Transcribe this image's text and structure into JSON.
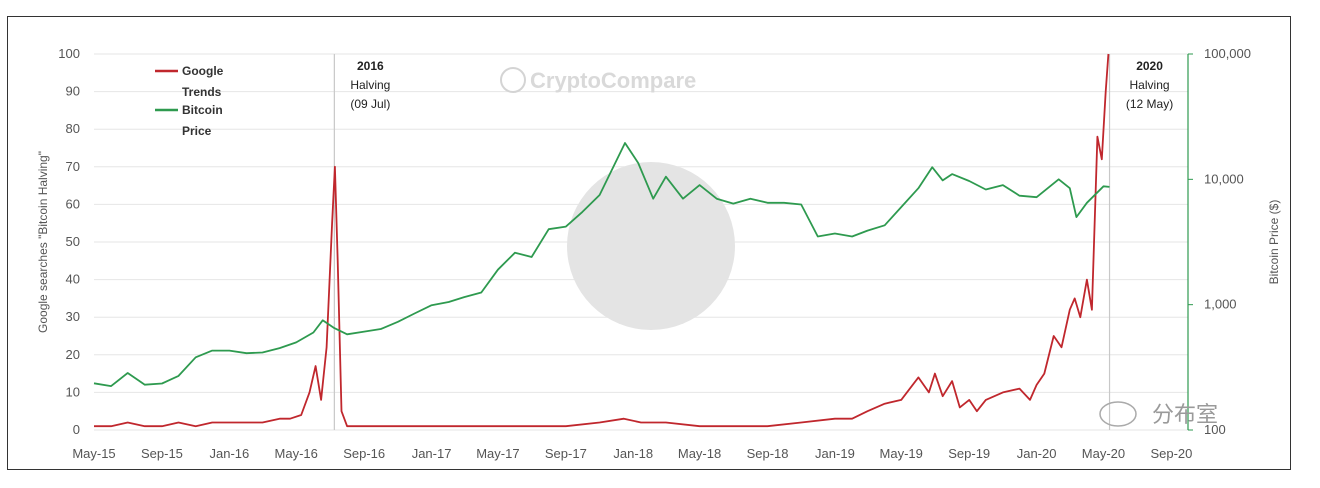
{
  "chart_data": {
    "type": "line",
    "watermark": "CryptoCompare",
    "corner_text": "分布室",
    "y_left_label": "Google searches \"Bitcoin Halving\"",
    "y_right_label": "Bitcoin Price ($)",
    "y_left_range": [
      0,
      100
    ],
    "y_left_ticks": [
      "0",
      "10",
      "20",
      "30",
      "40",
      "50",
      "60",
      "70",
      "80",
      "90",
      "100"
    ],
    "y_right_scale": "log",
    "y_right_range": [
      100,
      100000
    ],
    "y_right_ticks": [
      {
        "value": 100000,
        "label": "100,000"
      },
      {
        "value": 10000,
        "label": "10,000"
      },
      {
        "value": 1000,
        "label": "1,000"
      },
      {
        "value": 100,
        "label": "100"
      }
    ],
    "x_range": [
      "2015-05-01",
      "2020-10-01"
    ],
    "x_ticks": [
      {
        "date": "2015-05-01",
        "label": "May-15"
      },
      {
        "date": "2015-09-01",
        "label": "Sep-15"
      },
      {
        "date": "2016-01-01",
        "label": "Jan-16"
      },
      {
        "date": "2016-05-01",
        "label": "May-16"
      },
      {
        "date": "2016-09-01",
        "label": "Sep-16"
      },
      {
        "date": "2017-01-01",
        "label": "Jan-17"
      },
      {
        "date": "2017-05-01",
        "label": "May-17"
      },
      {
        "date": "2017-09-01",
        "label": "Sep-17"
      },
      {
        "date": "2018-01-01",
        "label": "Jan-18"
      },
      {
        "date": "2018-05-01",
        "label": "May-18"
      },
      {
        "date": "2018-09-01",
        "label": "Sep-18"
      },
      {
        "date": "2019-01-01",
        "label": "Jan-19"
      },
      {
        "date": "2019-05-01",
        "label": "May-19"
      },
      {
        "date": "2019-09-01",
        "label": "Sep-19"
      },
      {
        "date": "2020-01-01",
        "label": "Jan-20"
      },
      {
        "date": "2020-05-01",
        "label": "May-20"
      },
      {
        "date": "2020-09-01",
        "label": "Sep-20"
      }
    ],
    "grid": true,
    "legend_position": "top-left",
    "annotations": [
      {
        "date": "2016-07-09",
        "lines": [
          "2016",
          "Halving",
          "(09 Jul)"
        ]
      },
      {
        "date": "2020-05-12",
        "lines": [
          "2020",
          "Halving",
          "(12 May)"
        ]
      }
    ],
    "series": [
      {
        "name": "Google Trends",
        "axis": "left",
        "color": "#c0272d",
        "points": [
          [
            "2015-05-01",
            1
          ],
          [
            "2015-06-01",
            1
          ],
          [
            "2015-07-01",
            2
          ],
          [
            "2015-08-01",
            1
          ],
          [
            "2015-09-01",
            1
          ],
          [
            "2015-10-01",
            2
          ],
          [
            "2015-11-01",
            1
          ],
          [
            "2015-12-01",
            2
          ],
          [
            "2016-01-01",
            2
          ],
          [
            "2016-02-01",
            2
          ],
          [
            "2016-03-01",
            2
          ],
          [
            "2016-04-01",
            3
          ],
          [
            "2016-04-20",
            3
          ],
          [
            "2016-05-10",
            4
          ],
          [
            "2016-05-25",
            10
          ],
          [
            "2016-06-05",
            17
          ],
          [
            "2016-06-15",
            8
          ],
          [
            "2016-06-25",
            22
          ],
          [
            "2016-07-05",
            55
          ],
          [
            "2016-07-10",
            70
          ],
          [
            "2016-07-15",
            45
          ],
          [
            "2016-07-22",
            5
          ],
          [
            "2016-08-01",
            1
          ],
          [
            "2016-09-01",
            1
          ],
          [
            "2016-10-01",
            1
          ],
          [
            "2016-11-01",
            1
          ],
          [
            "2016-12-01",
            1
          ],
          [
            "2017-01-01",
            1
          ],
          [
            "2017-03-01",
            1
          ],
          [
            "2017-05-01",
            1
          ],
          [
            "2017-07-01",
            1
          ],
          [
            "2017-09-01",
            1
          ],
          [
            "2017-11-01",
            2
          ],
          [
            "2017-12-15",
            3
          ],
          [
            "2018-01-15",
            2
          ],
          [
            "2018-03-01",
            2
          ],
          [
            "2018-05-01",
            1
          ],
          [
            "2018-07-01",
            1
          ],
          [
            "2018-09-01",
            1
          ],
          [
            "2018-11-01",
            2
          ],
          [
            "2019-01-01",
            3
          ],
          [
            "2019-02-01",
            3
          ],
          [
            "2019-03-01",
            5
          ],
          [
            "2019-04-01",
            7
          ],
          [
            "2019-05-01",
            8
          ],
          [
            "2019-06-01",
            14
          ],
          [
            "2019-06-20",
            10
          ],
          [
            "2019-07-01",
            15
          ],
          [
            "2019-07-15",
            9
          ],
          [
            "2019-08-01",
            13
          ],
          [
            "2019-08-15",
            6
          ],
          [
            "2019-09-01",
            8
          ],
          [
            "2019-09-15",
            5
          ],
          [
            "2019-10-01",
            8
          ],
          [
            "2019-11-01",
            10
          ],
          [
            "2019-12-01",
            11
          ],
          [
            "2019-12-20",
            8
          ],
          [
            "2020-01-01",
            12
          ],
          [
            "2020-01-15",
            15
          ],
          [
            "2020-02-01",
            25
          ],
          [
            "2020-02-15",
            22
          ],
          [
            "2020-03-01",
            32
          ],
          [
            "2020-03-10",
            35
          ],
          [
            "2020-03-20",
            30
          ],
          [
            "2020-04-01",
            40
          ],
          [
            "2020-04-10",
            32
          ],
          [
            "2020-04-20",
            78
          ],
          [
            "2020-04-28",
            72
          ],
          [
            "2020-05-05",
            90
          ],
          [
            "2020-05-10",
            100
          ]
        ]
      },
      {
        "name": "Bitcoin Price",
        "axis": "right",
        "color": "#2e9a4f",
        "points": [
          [
            "2015-05-01",
            236
          ],
          [
            "2015-06-01",
            224
          ],
          [
            "2015-07-01",
            285
          ],
          [
            "2015-08-01",
            230
          ],
          [
            "2015-09-01",
            235
          ],
          [
            "2015-10-01",
            270
          ],
          [
            "2015-11-01",
            380
          ],
          [
            "2015-12-01",
            430
          ],
          [
            "2016-01-01",
            430
          ],
          [
            "2016-02-01",
            410
          ],
          [
            "2016-03-01",
            415
          ],
          [
            "2016-04-01",
            450
          ],
          [
            "2016-05-01",
            500
          ],
          [
            "2016-06-01",
            600
          ],
          [
            "2016-06-18",
            750
          ],
          [
            "2016-07-09",
            650
          ],
          [
            "2016-08-01",
            580
          ],
          [
            "2016-09-01",
            610
          ],
          [
            "2016-10-01",
            640
          ],
          [
            "2016-11-01",
            730
          ],
          [
            "2016-12-01",
            850
          ],
          [
            "2017-01-01",
            990
          ],
          [
            "2017-02-01",
            1050
          ],
          [
            "2017-03-01",
            1150
          ],
          [
            "2017-04-01",
            1250
          ],
          [
            "2017-05-01",
            1900
          ],
          [
            "2017-06-01",
            2600
          ],
          [
            "2017-07-01",
            2400
          ],
          [
            "2017-08-01",
            4000
          ],
          [
            "2017-09-01",
            4200
          ],
          [
            "2017-10-01",
            5500
          ],
          [
            "2017-11-01",
            7500
          ],
          [
            "2017-12-17",
            19500
          ],
          [
            "2018-01-10",
            13500
          ],
          [
            "2018-02-06",
            7000
          ],
          [
            "2018-03-01",
            10500
          ],
          [
            "2018-04-01",
            7000
          ],
          [
            "2018-05-01",
            9000
          ],
          [
            "2018-06-01",
            7000
          ],
          [
            "2018-07-01",
            6400
          ],
          [
            "2018-08-01",
            7000
          ],
          [
            "2018-09-01",
            6500
          ],
          [
            "2018-10-01",
            6500
          ],
          [
            "2018-11-01",
            6300
          ],
          [
            "2018-12-01",
            3500
          ],
          [
            "2019-01-01",
            3700
          ],
          [
            "2019-02-01",
            3500
          ],
          [
            "2019-03-01",
            3900
          ],
          [
            "2019-04-01",
            4300
          ],
          [
            "2019-05-01",
            6000
          ],
          [
            "2019-06-01",
            8500
          ],
          [
            "2019-06-26",
            12500
          ],
          [
            "2019-07-15",
            9800
          ],
          [
            "2019-08-01",
            11000
          ],
          [
            "2019-09-01",
            9700
          ],
          [
            "2019-10-01",
            8300
          ],
          [
            "2019-11-01",
            9000
          ],
          [
            "2019-12-01",
            7400
          ],
          [
            "2020-01-01",
            7200
          ],
          [
            "2020-02-10",
            10000
          ],
          [
            "2020-03-01",
            8500
          ],
          [
            "2020-03-13",
            5000
          ],
          [
            "2020-04-01",
            6500
          ],
          [
            "2020-05-01",
            8800
          ],
          [
            "2020-05-12",
            8700
          ]
        ]
      }
    ]
  }
}
